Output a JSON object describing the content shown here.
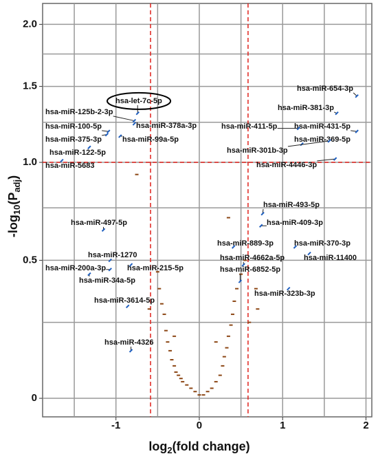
{
  "chart_data": {
    "type": "scatter",
    "yscale": "log1p",
    "xlabel": [
      "log",
      "2",
      "(fold change)"
    ],
    "ylabel": [
      "-log",
      "10",
      "(P",
      "adj",
      ")"
    ],
    "xlim": [
      -1.88,
      2.07
    ],
    "ylim": [
      -0.053,
      2.19
    ],
    "xticks": [
      -1,
      0,
      1,
      2
    ],
    "yticks": [
      0,
      0.5,
      {
        "value": 1,
        "label": "1.0"
      },
      {
        "value": 1.5,
        "label": "1.5"
      },
      {
        "value": 2,
        "label": "2.0"
      }
    ],
    "x_minor_ticks": [
      -1.5,
      -0.5,
      0.5,
      1.5
    ],
    "y_minor_ticks": [
      0.25,
      0.75,
      1.25,
      1.75
    ],
    "grid": true,
    "thresholds": {
      "x": [
        -0.585,
        0.585
      ],
      "y": 1,
      "color": "#e0201b"
    },
    "series": [
      {
        "color": "#8b4513",
        "x": [
          -0.5,
          -0.48,
          -0.45,
          -0.42,
          -0.4,
          -0.38,
          -0.35,
          -0.33,
          -0.3,
          -0.28,
          -0.25,
          -0.22,
          -0.2,
          -0.15,
          -0.1,
          -0.05,
          0,
          0.05,
          0.1,
          0.15,
          0.2,
          0.25,
          0.28,
          0.3,
          0.33,
          0.35,
          0.38,
          0.4,
          0.42,
          0.45,
          0.5,
          0.55,
          0.35,
          -0.75,
          0.68,
          0.7,
          -0.3,
          0.2,
          -0.6,
          0.6
        ],
        "y": [
          0.45,
          0.38,
          0.32,
          0.28,
          0.22,
          0.18,
          0.15,
          0.12,
          0.1,
          0.08,
          0.07,
          0.06,
          0.05,
          0.04,
          0.03,
          0.02,
          0.01,
          0.01,
          0.02,
          0.03,
          0.05,
          0.07,
          0.1,
          0.13,
          0.16,
          0.2,
          0.24,
          0.28,
          0.33,
          0.38,
          0.44,
          0.5,
          0.7,
          0.93,
          0.38,
          0.3,
          0.2,
          0.18,
          0.3,
          0.25
        ]
      }
    ],
    "annotation_color": "#1f5fbf",
    "annotations": [
      {
        "text": "hsa-miR-654-3p",
        "x": 1.89,
        "y": 1.43
      },
      {
        "text": "hsa-miR-381-3p",
        "x": 1.65,
        "y": 1.31
      },
      {
        "text": "hsa-miR-431-5p",
        "x": 1.89,
        "y": 1.19
      },
      {
        "text": "hsa-miR-369-5p",
        "x": 1.23,
        "y": 1.11
      },
      {
        "text": "hsa-miR-411-5p",
        "x": 1.19,
        "y": 1.21
      },
      {
        "text": "hsa-miR-301b-3p",
        "x": 1.56,
        "y": 1.13
      },
      {
        "text": "hsa-miR-4446-3p",
        "x": 1.63,
        "y": 1.02
      },
      {
        "text": "hsa-let-7c-5p",
        "x": -0.74,
        "y": 1.31
      },
      {
        "text": "hsa-miR-125b-2-3p",
        "x": -0.78,
        "y": 1.26
      },
      {
        "text": "hsa-miR-100-5p",
        "x": -1.09,
        "y": 1.19
      },
      {
        "text": "hsa-miR-378a-3p",
        "x": -0.78,
        "y": 1.24
      },
      {
        "text": "hsa-miR-375-3p",
        "x": -1.11,
        "y": 1.17
      },
      {
        "text": "hsa-miR-99a-5p",
        "x": -0.95,
        "y": 1.16
      },
      {
        "text": "hsa-miR-122-5p",
        "x": -1.32,
        "y": 1.09
      },
      {
        "text": "hsa-miR-5683",
        "x": -1.65,
        "y": 1.01
      },
      {
        "text": "hsa-miR-493-5p",
        "x": 0.76,
        "y": 0.72
      },
      {
        "text": "hsa-miR-409-3p",
        "x": 0.74,
        "y": 0.66
      },
      {
        "text": "hsa-miR-889-3p",
        "x": 0.41,
        "y": 0.56
      },
      {
        "text": "hsa-miR-370-3p",
        "x": 1.15,
        "y": 0.56
      },
      {
        "text": "hsa-miR-4662a-5p",
        "x": 0.53,
        "y": 0.48
      },
      {
        "text": "hsa-miR-11400",
        "x": 1.32,
        "y": 0.53
      },
      {
        "text": "hsa-miR-6852-5p",
        "x": 0.49,
        "y": 0.41
      },
      {
        "text": "hsa-miR-323b-3p",
        "x": 1.07,
        "y": 0.38
      },
      {
        "text": "hsa-miR-497-5p",
        "x": -1.15,
        "y": 0.64
      },
      {
        "text": "hsa-miR-1270",
        "x": -1.07,
        "y": 0.5
      },
      {
        "text": "hsa-miR-200a-3p",
        "x": -1.07,
        "y": 0.46
      },
      {
        "text": "hsa-miR-215-5p",
        "x": -0.82,
        "y": 0.48
      },
      {
        "text": "hsa-miR-34a-5p",
        "x": -1.32,
        "y": 0.44
      },
      {
        "text": "hsa-miR-3614-5p",
        "x": -0.86,
        "y": 0.31
      },
      {
        "text": "hsa-miR-4326",
        "x": -0.82,
        "y": 0.15
      }
    ]
  }
}
